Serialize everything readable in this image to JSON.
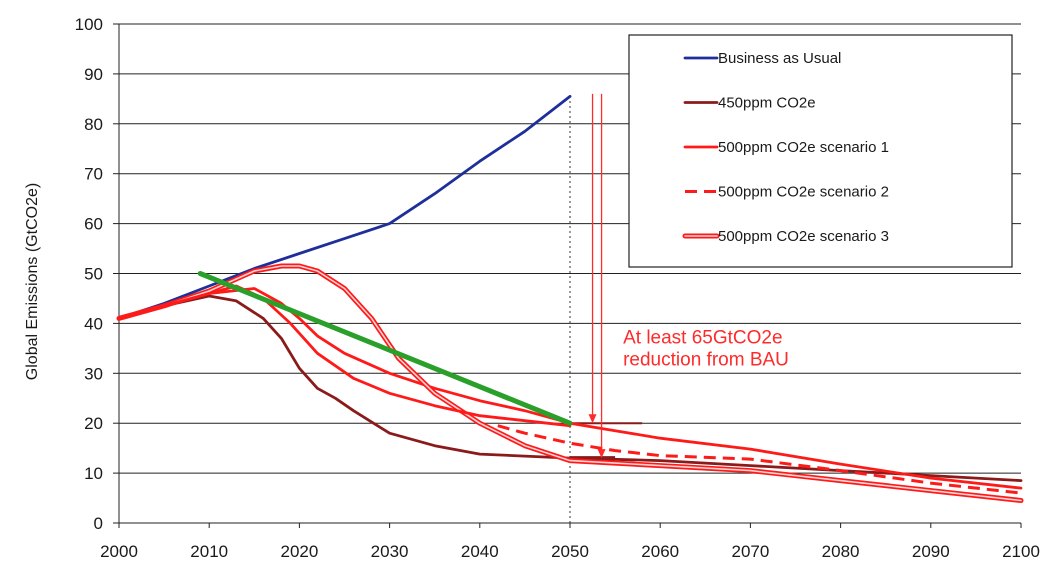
{
  "chart_data": {
    "type": "line",
    "ylabel": "Global Emissions (GtCO2e)",
    "xlim": [
      2000,
      2100
    ],
    "ylim": [
      0,
      100
    ],
    "x_ticks": [
      2000,
      2010,
      2020,
      2030,
      2040,
      2050,
      2060,
      2070,
      2080,
      2090,
      2100
    ],
    "y_ticks": [
      0,
      10,
      20,
      30,
      40,
      50,
      60,
      70,
      80,
      90,
      100
    ],
    "grid": "horizontal",
    "legend_position": "top-right",
    "series": [
      {
        "name": "Business as Usual",
        "color": "#1f2f9a",
        "style": "solid",
        "x": [
          2000,
          2005,
          2010,
          2015,
          2020,
          2025,
          2030,
          2035,
          2040,
          2045,
          2050
        ],
        "y": [
          41,
          44,
          47.5,
          51,
          54,
          57,
          60,
          66,
          72.5,
          78.5,
          85.5
        ]
      },
      {
        "name": "450ppm CO2e",
        "color": "#8b1a1a",
        "style": "solid",
        "x": [
          2000,
          2005,
          2010,
          2013,
          2016,
          2018,
          2020,
          2022,
          2024,
          2026,
          2030,
          2035,
          2040,
          2050,
          2060,
          2070,
          2080,
          2090,
          2100
        ],
        "y": [
          41,
          43.5,
          45.5,
          44.5,
          41,
          37,
          31,
          27,
          25,
          22.5,
          18,
          15.5,
          13.8,
          13,
          12.5,
          11.5,
          10.5,
          9.5,
          8.5
        ]
      },
      {
        "name": "500ppm CO2e scenario 1",
        "color": "#ff1a1a",
        "style": "solid",
        "x": [
          2000,
          2005,
          2010,
          2015,
          2018,
          2020,
          2022,
          2025,
          2030,
          2035,
          2040,
          2045,
          2050,
          2055,
          2060,
          2070,
          2080,
          2090,
          2100
        ],
        "y": [
          41,
          43.5,
          46,
          47,
          44,
          41,
          37.5,
          34,
          30,
          27,
          24.5,
          22.5,
          20,
          18.5,
          17,
          14.8,
          11.8,
          9,
          7
        ]
      },
      {
        "name": "500ppm CO2e scenario 2",
        "color": "#ff1a1a",
        "style": "dashed",
        "x": [
          2042,
          2045,
          2050,
          2055,
          2060,
          2070,
          2080,
          2090,
          2100
        ],
        "y": [
          19.5,
          18,
          16,
          14.5,
          13.5,
          12.8,
          10.5,
          8,
          6
        ]
      },
      {
        "name": "500ppm CO2e scenario 3",
        "color": "#ff1a1a",
        "style": "double",
        "x": [
          2000,
          2005,
          2010,
          2015,
          2018,
          2020,
          2022,
          2025,
          2028,
          2031,
          2035,
          2040,
          2045,
          2050,
          2055,
          2060,
          2070,
          2080,
          2090,
          2100
        ],
        "y": [
          41,
          43.5,
          46.5,
          50.5,
          51.5,
          51.5,
          50.5,
          47,
          41,
          33,
          26,
          20,
          15.5,
          12.5,
          12,
          11.5,
          10.5,
          8.5,
          6.5,
          4.5
        ]
      },
      {
        "name": "",
        "color": "#ff1a1a",
        "style": "solid",
        "x": [
          2000,
          2005,
          2010,
          2013,
          2016,
          2019,
          2022,
          2026,
          2030,
          2035,
          2040,
          2045,
          2050
        ],
        "y": [
          41,
          43.5,
          46,
          47.5,
          45,
          40,
          34,
          29,
          26,
          23.5,
          21.5,
          20.5,
          19.5
        ]
      },
      {
        "name": "",
        "color": "#2aa02a",
        "style": "bold",
        "x": [
          2009,
          2050
        ],
        "y": [
          50,
          20
        ]
      }
    ],
    "reference_lines": [
      {
        "type": "vertical",
        "x": 2050,
        "y_from": 0,
        "y_to": 85.5,
        "style": "dotted",
        "color": "#333333"
      },
      {
        "type": "horizontal",
        "x_from": 2050,
        "x_to": 2058,
        "y": 20,
        "color": "#8b1a1a"
      },
      {
        "type": "horizontal",
        "x_from": 2050,
        "x_to": 2055,
        "y": 13.2,
        "color": "#8b1a1a"
      }
    ],
    "arrows": [
      {
        "x": 2052.5,
        "y_from": 86,
        "y_to": 20,
        "color": "#ff2a2a"
      },
      {
        "x": 2053.5,
        "y_from": 86,
        "y_to": 13,
        "color": "#ff2a2a"
      }
    ],
    "annotation": {
      "lines": [
        "At least 65GtCO2e",
        "reduction from BAU"
      ],
      "x": 2055,
      "y": 36,
      "color": "#ff2a2a"
    }
  }
}
